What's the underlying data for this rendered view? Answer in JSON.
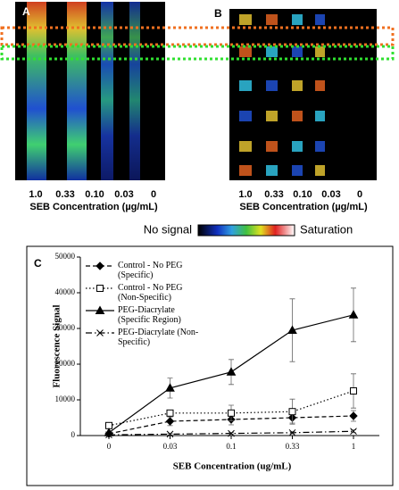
{
  "panels": {
    "a_label": "A",
    "b_label": "B",
    "concentrations": [
      "1.0",
      "0.33",
      "0.10",
      "0.03",
      "0"
    ],
    "axis_label": "SEB Concentration (µg/mL)",
    "colorbar_low": "No signal",
    "colorbar_high": "Saturation"
  },
  "chart_data": {
    "type": "line",
    "panel_label": "C",
    "x_label": "SEB Concentration (ug/mL)",
    "y_label": "Fluorescence Signal",
    "categories": [
      "0",
      "0.03",
      "0.1",
      "0.33",
      "1"
    ],
    "ylim": [
      0,
      50000
    ],
    "yticks": [
      0,
      10000,
      20000,
      30000,
      40000,
      50000
    ],
    "legend": "upper left",
    "series": [
      {
        "name": "Control - No PEG (Specific)",
        "color": "#000000",
        "dash": "5,3",
        "marker": "diamond",
        "values": [
          500,
          4000,
          4500,
          5000,
          5500
        ],
        "errors": [
          0,
          1200,
          1500,
          1500,
          1500
        ]
      },
      {
        "name": "Control - No PEG (Non-Specific)",
        "color": "#000000",
        "dash": "1.5,2.5",
        "marker": "square",
        "values": [
          2800,
          6300,
          6300,
          6700,
          12500
        ],
        "errors": [
          0,
          800,
          2200,
          3500,
          4800
        ]
      },
      {
        "name": "PEG-Diacrylate (Specific Region)",
        "color": "#000000",
        "dash": "none",
        "marker": "triangle",
        "values": [
          800,
          13300,
          17800,
          29500,
          33800
        ],
        "errors": [
          0,
          2800,
          3500,
          8800,
          7500
        ]
      },
      {
        "name": "PEG-Diacrylate (Non-Specific)",
        "color": "#000000",
        "dash": "7,3,1.5,3",
        "marker": "x",
        "values": [
          200,
          400,
          600,
          800,
          1200
        ],
        "errors": [
          0,
          200,
          200,
          300,
          400
        ]
      }
    ]
  }
}
